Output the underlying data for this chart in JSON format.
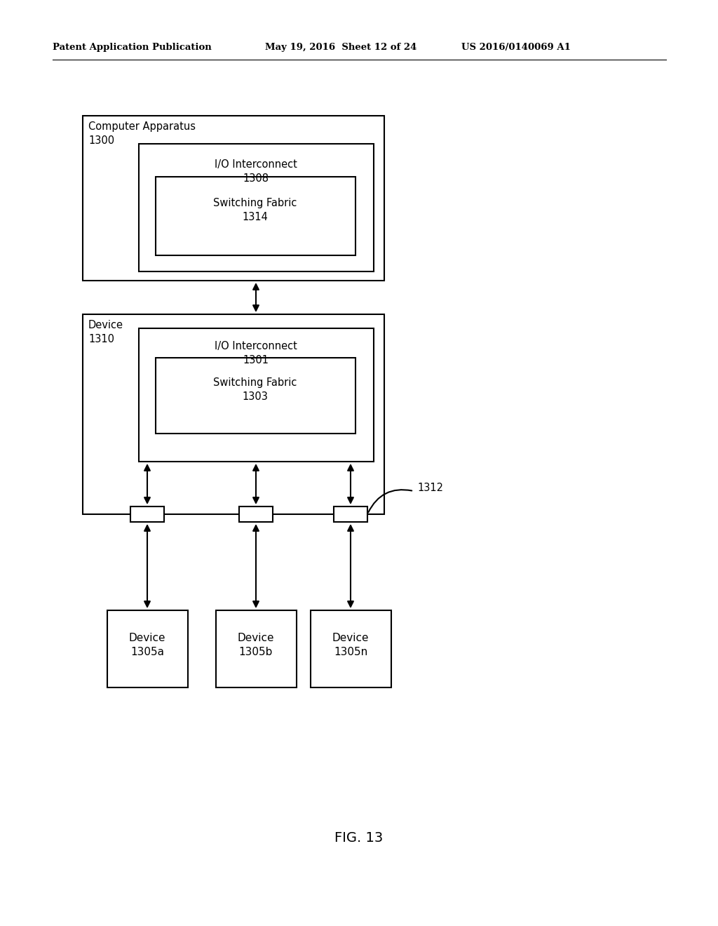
{
  "bg_color": "#ffffff",
  "header_left": "Patent Application Publication",
  "header_mid": "May 19, 2016  Sheet 12 of 24",
  "header_right": "US 2016/0140069 A1",
  "fig_label": "FIG. 13",
  "figsize": [
    10.24,
    13.2
  ],
  "dpi": 100
}
